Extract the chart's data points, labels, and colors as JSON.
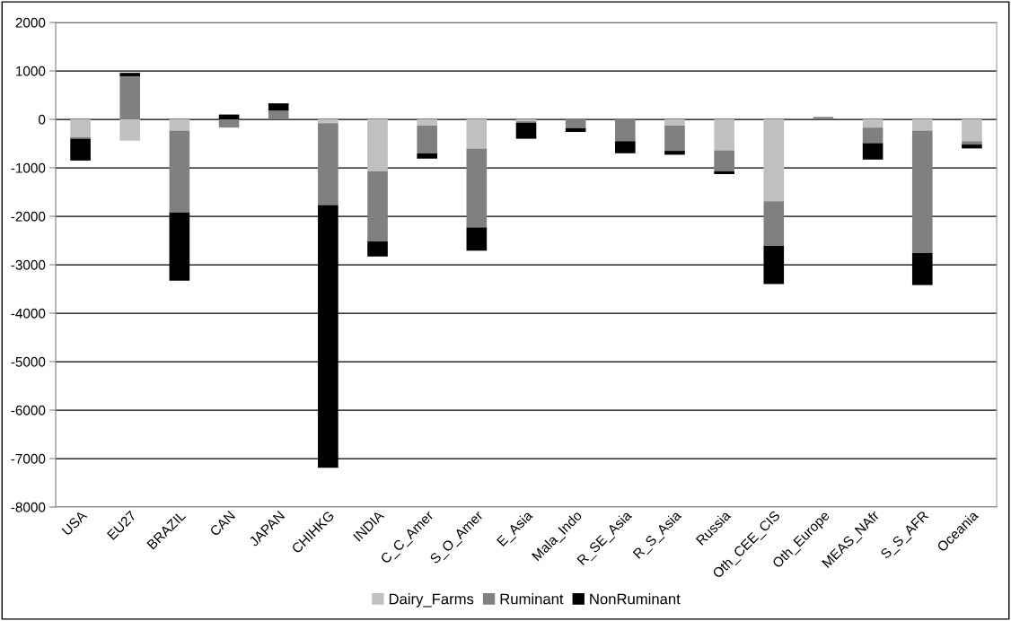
{
  "chart_data": {
    "type": "bar",
    "stacked": true,
    "categories": [
      "USA",
      "EU27",
      "BRAZIL",
      "CAN",
      "JAPAN",
      "CHIHKG",
      "INDIA",
      "C_C_Amer",
      "S_O_Amer",
      "E_Asia",
      "Mala_Indo",
      "R_SE_Asia",
      "R_S_Asia",
      "Russia",
      "Oth_CEE_CIS",
      "Oth_Europe",
      "MEAS_NAfr",
      "S_S_AFR",
      "Oceania"
    ],
    "series": [
      {
        "name": "Dairy_Farms",
        "color": "#c0c0c0",
        "values": [
          -370,
          -440,
          -230,
          0,
          0,
          -80,
          -1070,
          -130,
          -600,
          -40,
          0,
          0,
          -130,
          -640,
          -1690,
          0,
          -170,
          -230,
          -450
        ]
      },
      {
        "name": "Ruminant",
        "color": "#808080",
        "values": [
          -30,
          890,
          -1690,
          -170,
          180,
          -1690,
          -1450,
          -570,
          -1630,
          -30,
          -180,
          -450,
          -520,
          -430,
          -920,
          50,
          -320,
          -2530,
          -70
        ]
      },
      {
        "name": "NonRuminant",
        "color": "#000000",
        "values": [
          -450,
          70,
          -1410,
          100,
          150,
          -5420,
          -310,
          -110,
          -480,
          -330,
          -80,
          -250,
          -80,
          -60,
          -790,
          0,
          -340,
          -660,
          -80
        ]
      }
    ],
    "ylim": [
      -8000,
      2000
    ],
    "yticks": [
      -8000,
      -7000,
      -6000,
      -5000,
      -4000,
      -3000,
      -2000,
      -1000,
      0,
      1000,
      2000
    ],
    "grid": "y",
    "legend": "bottom"
  }
}
